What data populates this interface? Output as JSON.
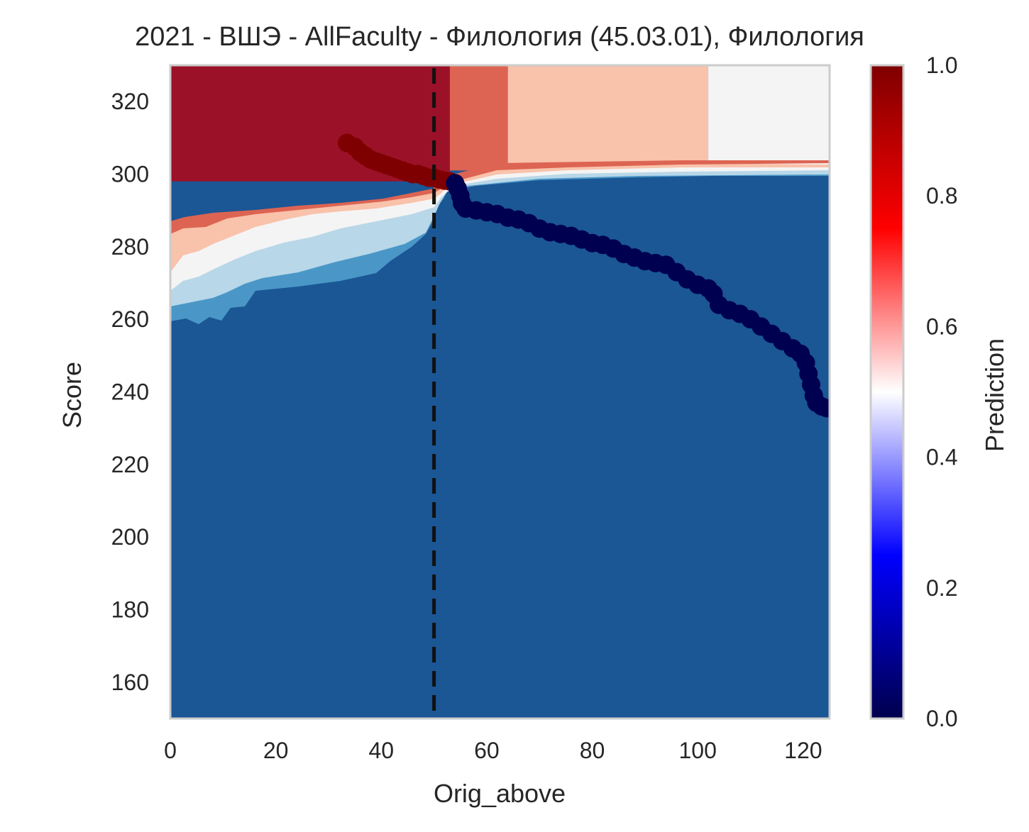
{
  "chart_data": {
    "type": "heatmap",
    "title": "2021 - ВШЭ - AllFaculty - Филология (45.03.01), Филология",
    "xlabel": "Orig_above",
    "ylabel": "Score",
    "xlim": [
      0,
      125
    ],
    "ylim": [
      150,
      330
    ],
    "x_ticks": [
      0,
      20,
      40,
      60,
      80,
      100,
      120
    ],
    "y_ticks": [
      160,
      180,
      200,
      220,
      240,
      260,
      280,
      300,
      320
    ],
    "grid": false,
    "colorbar": {
      "label": "Prediction",
      "range": [
        0,
        1
      ],
      "ticks": [
        "0.0",
        "0.2",
        "0.4",
        "0.6",
        "0.8",
        "1.0"
      ],
      "colormap": "seismic",
      "position": "right"
    },
    "threshold_line": {
      "x": 50,
      "style": "dashed",
      "color": "#111111"
    },
    "regions": [
      {
        "level": 0.06,
        "color": "#1b5695",
        "label": "background"
      },
      {
        "level": 0.96,
        "color": "#9b1127",
        "x_range": [
          0,
          53
        ],
        "y_range": [
          298,
          330
        ]
      },
      {
        "level": 0.75,
        "color": "#dd6452",
        "x_range": [
          53,
          64
        ],
        "y_range": [
          301,
          330
        ]
      },
      {
        "level": 0.62,
        "color": "#f9c2ab",
        "x_range": [
          64,
          102
        ],
        "y_range": [
          301,
          330
        ]
      },
      {
        "level": 0.5,
        "color": "#f4f4f4",
        "x_range": [
          102,
          125
        ],
        "y_range": [
          301,
          330
        ]
      }
    ],
    "series": [
      {
        "color": "#7f0000",
        "prediction": 1.0,
        "points": [
          [
            33.5,
            308.6
          ],
          [
            35,
            307.5
          ],
          [
            36,
            306
          ],
          [
            37,
            305
          ],
          [
            38,
            304
          ],
          [
            39,
            303.5
          ],
          [
            40,
            303
          ],
          [
            41,
            302.5
          ],
          [
            42,
            302
          ],
          [
            43,
            301.5
          ],
          [
            44,
            301
          ],
          [
            45,
            300.5
          ],
          [
            46,
            300
          ],
          [
            47,
            300
          ],
          [
            48,
            299.5
          ],
          [
            49,
            299
          ],
          [
            50,
            299
          ],
          [
            51,
            298.5
          ],
          [
            52,
            298.2
          ],
          [
            53,
            298
          ]
        ]
      },
      {
        "color": "#000050",
        "prediction": 0.0,
        "points": [
          [
            54,
            297.5
          ],
          [
            54.5,
            296
          ],
          [
            55,
            294
          ],
          [
            55.3,
            292
          ],
          [
            56,
            290.5
          ],
          [
            58,
            290
          ],
          [
            60,
            289.5
          ],
          [
            62,
            289
          ],
          [
            64,
            288
          ],
          [
            66,
            287.5
          ],
          [
            68,
            286.5
          ],
          [
            70,
            285
          ],
          [
            72,
            284
          ],
          [
            74,
            283.5
          ],
          [
            76,
            283
          ],
          [
            78,
            282
          ],
          [
            80,
            281
          ],
          [
            82,
            280.5
          ],
          [
            84,
            279.5
          ],
          [
            86,
            278
          ],
          [
            88,
            277
          ],
          [
            90,
            276
          ],
          [
            92,
            275.5
          ],
          [
            94,
            275
          ],
          [
            96,
            273
          ],
          [
            98,
            271
          ],
          [
            100,
            269.5
          ],
          [
            102,
            268.5
          ],
          [
            103,
            267
          ],
          [
            104,
            264
          ],
          [
            106,
            262.5
          ],
          [
            108,
            261.5
          ],
          [
            110,
            260
          ],
          [
            112,
            258
          ],
          [
            114,
            256
          ],
          [
            116,
            254
          ],
          [
            118,
            252
          ],
          [
            119.5,
            250.5
          ],
          [
            120.5,
            248
          ],
          [
            121,
            245
          ],
          [
            121.5,
            242
          ],
          [
            122,
            239
          ],
          [
            122.5,
            237
          ],
          [
            123.5,
            236
          ],
          [
            124.5,
            235.5
          ]
        ]
      }
    ]
  }
}
